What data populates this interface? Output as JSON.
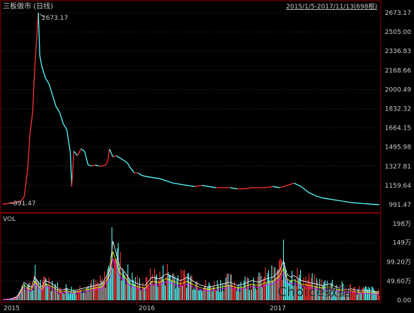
{
  "header": {
    "title": "三板做市 (日线)",
    "range_text": "2015/1/5-2017/11/13(698根)"
  },
  "colors": {
    "background": "#000000",
    "up": "#ff3232",
    "down": "#54fcfc",
    "axis_text": "#c8c8c8",
    "frame": "#8b0000",
    "grid": "#2b2b2b",
    "ma1": "#ffffff",
    "ma2": "#ffff00",
    "ma3": "#ff00ff"
  },
  "chart_data": [
    {
      "type": "line",
      "name": "price",
      "y_ticks": [
        "2673.17",
        "2505.00",
        "2336.83",
        "2168.66",
        "2000.49",
        "1832.32",
        "1664.15",
        "1495.98",
        "1327.81",
        "1159.64",
        "991.47"
      ],
      "ylim": [
        991.47,
        2673.17
      ],
      "annotations": {
        "max": {
          "label": "2673.17",
          "value": 2673.17
        },
        "min": {
          "label": "991.47",
          "value": 991.47
        }
      },
      "x": [
        0,
        15,
        25,
        30,
        35,
        38,
        42,
        45,
        50,
        52,
        55,
        60,
        65,
        70,
        75,
        80,
        85,
        90,
        95,
        97,
        100,
        105,
        110,
        115,
        120,
        125,
        130,
        135,
        140,
        145,
        148,
        150,
        155,
        160,
        165,
        170,
        175,
        180,
        185,
        190,
        195,
        200,
        210,
        220,
        230,
        240,
        250,
        260,
        270,
        280,
        290,
        300,
        310,
        320,
        330,
        340,
        350,
        360,
        370,
        380,
        390,
        400,
        410,
        420,
        430,
        440,
        450,
        460,
        470,
        480,
        490,
        500,
        510,
        520,
        530
      ],
      "close": [
        995,
        1010,
        1020,
        1060,
        1300,
        1600,
        1800,
        2200,
        2673,
        2300,
        2200,
        2100,
        2050,
        1950,
        1850,
        1800,
        1700,
        1650,
        1450,
        1150,
        1460,
        1420,
        1480,
        1460,
        1340,
        1330,
        1340,
        1330,
        1330,
        1340,
        1380,
        1480,
        1410,
        1420,
        1400,
        1380,
        1360,
        1310,
        1270,
        1270,
        1250,
        1240,
        1230,
        1220,
        1200,
        1180,
        1170,
        1160,
        1150,
        1160,
        1150,
        1140,
        1140,
        1140,
        1130,
        1130,
        1140,
        1140,
        1140,
        1150,
        1140,
        1160,
        1180,
        1150,
        1100,
        1070,
        1050,
        1040,
        1030,
        1020,
        1010,
        1005,
        1000,
        995,
        992
      ]
    },
    {
      "type": "bar",
      "name": "VOL",
      "title": "VOL",
      "y_ticks": [
        "198万",
        "149万",
        "99.20万",
        "49.60万",
        "0.00"
      ],
      "ylim": [
        0,
        198
      ],
      "unit": "万",
      "x": [
        0,
        10,
        20,
        25,
        30,
        35,
        40,
        45,
        50,
        55,
        60,
        70,
        80,
        90,
        100,
        110,
        120,
        130,
        140,
        150,
        155,
        160,
        165,
        170,
        175,
        180,
        190,
        200,
        210,
        220,
        230,
        240,
        250,
        260,
        270,
        280,
        290,
        300,
        310,
        320,
        330,
        340,
        350,
        360,
        370,
        380,
        390,
        395,
        400,
        405,
        410,
        420,
        430,
        440,
        450,
        460,
        470,
        480,
        490,
        500,
        510,
        520,
        530
      ],
      "values": [
        2,
        4,
        10,
        30,
        55,
        45,
        40,
        70,
        55,
        40,
        60,
        50,
        30,
        35,
        28,
        35,
        40,
        45,
        50,
        90,
        180,
        140,
        100,
        90,
        75,
        60,
        50,
        45,
        70,
        65,
        80,
        70,
        60,
        70,
        55,
        45,
        40,
        45,
        50,
        55,
        45,
        50,
        60,
        55,
        65,
        70,
        90,
        120,
        80,
        70,
        75,
        60,
        55,
        50,
        45,
        50,
        40,
        35,
        35,
        30,
        30,
        28,
        25
      ]
    }
  ],
  "x_axis_labels": [
    "2015",
    "2016",
    "2017"
  ],
  "watermark": "Choice数据"
}
